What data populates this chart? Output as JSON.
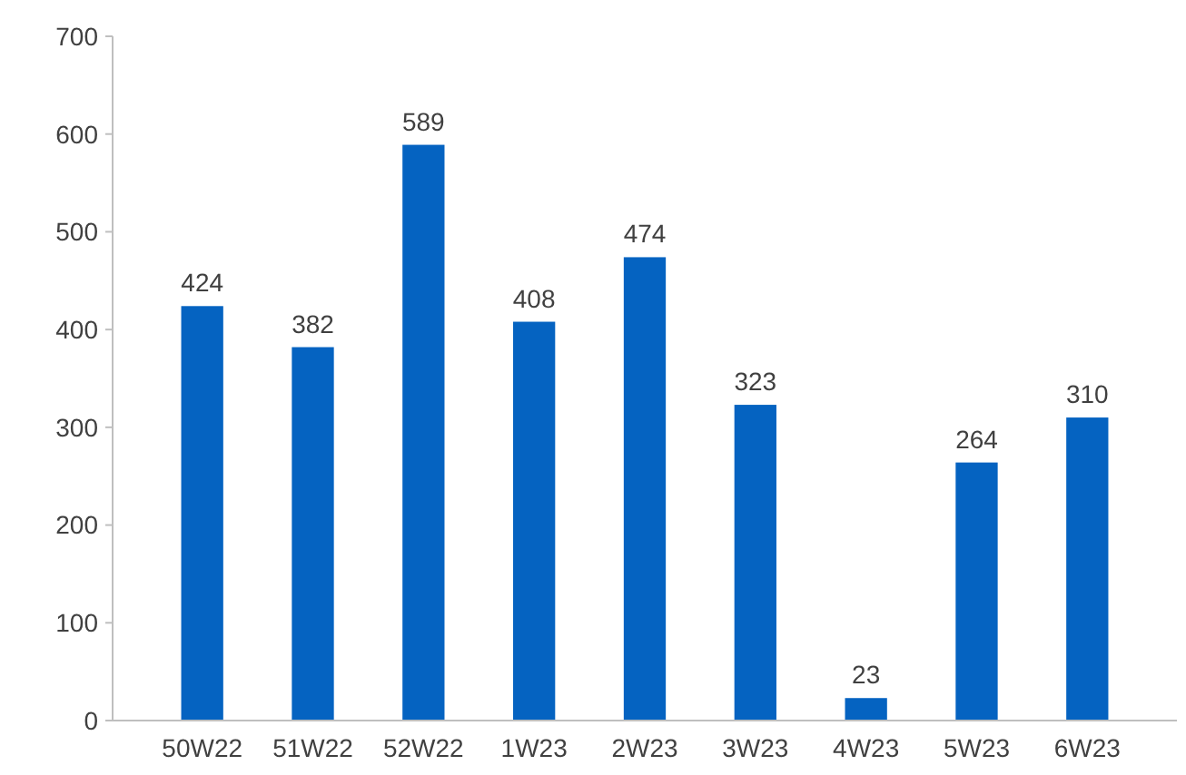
{
  "chart_data": {
    "type": "bar",
    "categories": [
      "50W22",
      "51W22",
      "52W22",
      "1W23",
      "2W23",
      "3W23",
      "4W23",
      "5W23",
      "6W23"
    ],
    "values": [
      424,
      382,
      589,
      408,
      474,
      323,
      23,
      264,
      310
    ],
    "color": "#0563c1",
    "ylim": [
      0,
      700
    ],
    "yticks": [
      0,
      100,
      200,
      300,
      400,
      500,
      600,
      700
    ],
    "data_labels": true,
    "grid": false
  }
}
